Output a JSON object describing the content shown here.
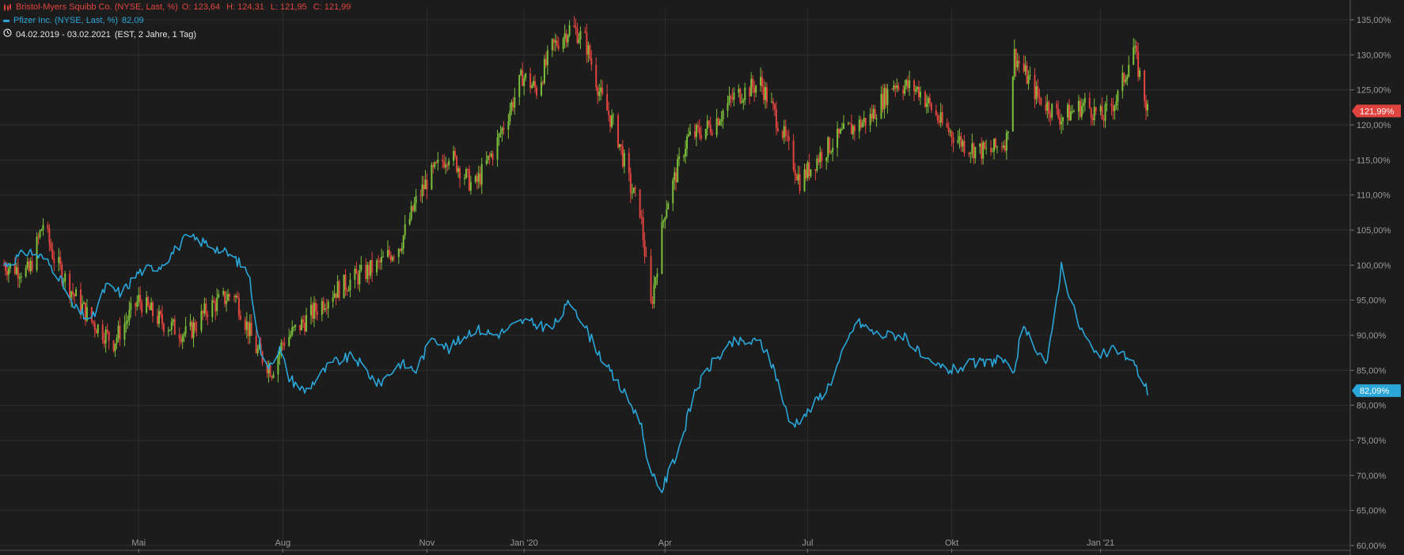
{
  "legend": {
    "bms": {
      "label": "Bristol-Myers Squibb Co. (NYSE, Last, %)",
      "open": "O: 123,64",
      "high": "H: 124,31",
      "low": "L: 121,95",
      "close": "C: 121,99",
      "color": "#e0443f"
    },
    "pfe": {
      "label": "Pfizer Inc. (NYSE, Last, %)",
      "value": "82,09",
      "color": "#2aa6d8"
    },
    "range": {
      "dates": "04.02.2019 - 03.02.2021",
      "detail": "(EST, 2 Jahre, 1 Tag)"
    }
  },
  "price_tags": {
    "bms": "121,99%",
    "pfe": "82,09%"
  },
  "colors": {
    "background": "#1c1c1c",
    "grid": "#2c2c2c",
    "up_candle": "#7cbf3b",
    "down_candle": "#e0443f",
    "pfe_line": "#2aa6d8"
  },
  "chart_data": {
    "type": "line",
    "x_axis": {
      "type": "date",
      "range": [
        "2019-02-04",
        "2021-02-03"
      ],
      "tick_labels": [
        {
          "date": "2019-05-01",
          "label": "Mai"
        },
        {
          "date": "2019-08-01",
          "label": "Aug"
        },
        {
          "date": "2019-11-01",
          "label": "Nov"
        },
        {
          "date": "2020-01-02",
          "label": "Jan '20"
        },
        {
          "date": "2020-04-01",
          "label": "Apr"
        },
        {
          "date": "2020-07-01",
          "label": "Jul"
        },
        {
          "date": "2020-10-01",
          "label": "Okt"
        },
        {
          "date": "2021-01-04",
          "label": "Jan '21"
        }
      ]
    },
    "y_axis": {
      "position": "right",
      "unit": "%",
      "range": [
        60,
        137
      ],
      "ticks": [
        60,
        65,
        70,
        75,
        80,
        85,
        90,
        95,
        100,
        105,
        110,
        115,
        120,
        125,
        130,
        135
      ],
      "tick_labels": [
        "60,00%",
        "65,00%",
        "70,00%",
        "75,00%",
        "80,00%",
        "85,00%",
        "90,00%",
        "95,00%",
        "100,00%",
        "105,00%",
        "110,00%",
        "115,00%",
        "120,00%",
        "125,00%",
        "130,00%",
        "135,00%"
      ]
    },
    "grid": true,
    "series": [
      {
        "name": "Bristol-Myers Squibb Co. (NYSE, Last, %)",
        "style": "candlestick",
        "x": [
          "2019-02-04",
          "2019-02-20",
          "2019-03-01",
          "2019-03-08",
          "2019-03-20",
          "2019-04-01",
          "2019-04-15",
          "2019-05-01",
          "2019-05-15",
          "2019-06-01",
          "2019-06-15",
          "2019-07-01",
          "2019-07-15",
          "2019-07-25",
          "2019-08-01",
          "2019-08-15",
          "2019-09-01",
          "2019-09-15",
          "2019-10-01",
          "2019-10-15",
          "2019-10-25",
          "2019-11-01",
          "2019-11-15",
          "2019-12-01",
          "2019-12-15",
          "2020-01-01",
          "2020-01-10",
          "2020-01-20",
          "2020-02-01",
          "2020-02-10",
          "2020-02-20",
          "2020-03-01",
          "2020-03-10",
          "2020-03-16",
          "2020-03-23",
          "2020-04-01",
          "2020-04-15",
          "2020-05-01",
          "2020-05-15",
          "2020-06-01",
          "2020-06-15",
          "2020-06-26",
          "2020-07-10",
          "2020-07-25",
          "2020-08-10",
          "2020-08-25",
          "2020-09-10",
          "2020-09-25",
          "2020-10-10",
          "2020-10-25",
          "2020-11-05",
          "2020-11-10",
          "2020-11-25",
          "2020-12-10",
          "2020-12-25",
          "2021-01-05",
          "2021-01-15",
          "2021-01-25",
          "2021-02-03"
        ],
        "values": [
          100,
          99,
          106,
          101,
          96,
          92,
          89,
          95,
          92,
          90,
          94,
          96,
          88,
          85,
          89,
          92,
          96,
          98,
          100,
          103,
          109,
          112,
          116,
          111,
          117,
          127,
          125,
          131,
          134,
          132,
          124,
          119,
          111,
          108,
          94,
          108,
          118,
          120,
          124,
          126,
          119,
          112,
          116,
          119,
          121,
          126,
          125,
          120,
          117,
          116,
          118,
          130,
          124,
          121,
          123,
          121,
          124,
          131,
          121.99
        ],
        "last": {
          "open": 123.64,
          "high": 124.31,
          "low": 121.95,
          "close": 121.99
        }
      },
      {
        "name": "Pfizer Inc. (NYSE, Last, %)",
        "style": "line",
        "x": [
          "2019-02-04",
          "2019-02-20",
          "2019-03-01",
          "2019-03-10",
          "2019-03-20",
          "2019-04-01",
          "2019-04-10",
          "2019-04-20",
          "2019-05-01",
          "2019-05-15",
          "2019-06-01",
          "2019-06-15",
          "2019-07-01",
          "2019-07-10",
          "2019-07-20",
          "2019-07-30",
          "2019-08-05",
          "2019-08-15",
          "2019-09-01",
          "2019-09-15",
          "2019-10-01",
          "2019-10-15",
          "2019-10-25",
          "2019-11-05",
          "2019-11-15",
          "2019-12-01",
          "2019-12-15",
          "2020-01-01",
          "2020-01-20",
          "2020-02-01",
          "2020-02-15",
          "2020-02-25",
          "2020-03-05",
          "2020-03-16",
          "2020-03-23",
          "2020-03-30",
          "2020-04-10",
          "2020-04-20",
          "2020-05-01",
          "2020-05-15",
          "2020-06-01",
          "2020-06-10",
          "2020-06-20",
          "2020-07-01",
          "2020-07-15",
          "2020-08-01",
          "2020-08-15",
          "2020-09-01",
          "2020-09-15",
          "2020-10-01",
          "2020-10-15",
          "2020-10-25",
          "2020-11-01",
          "2020-11-09",
          "2020-11-15",
          "2020-12-01",
          "2020-12-10",
          "2020-12-20",
          "2021-01-01",
          "2021-01-15",
          "2021-01-25",
          "2021-02-03"
        ],
        "values": [
          100,
          102,
          101,
          99,
          94,
          92,
          97,
          96,
          99,
          100,
          104,
          103,
          101,
          99,
          85,
          88,
          84,
          82,
          86,
          87,
          83,
          86,
          85,
          90,
          88,
          91,
          90,
          92,
          91,
          95,
          89,
          85,
          82,
          78,
          70,
          68,
          74,
          82,
          86,
          89,
          89,
          85,
          77,
          79,
          83,
          92,
          90,
          90,
          86,
          85,
          86,
          86,
          87,
          84,
          91,
          86,
          100,
          92,
          87,
          88,
          86,
          82.09
        ]
      }
    ]
  }
}
